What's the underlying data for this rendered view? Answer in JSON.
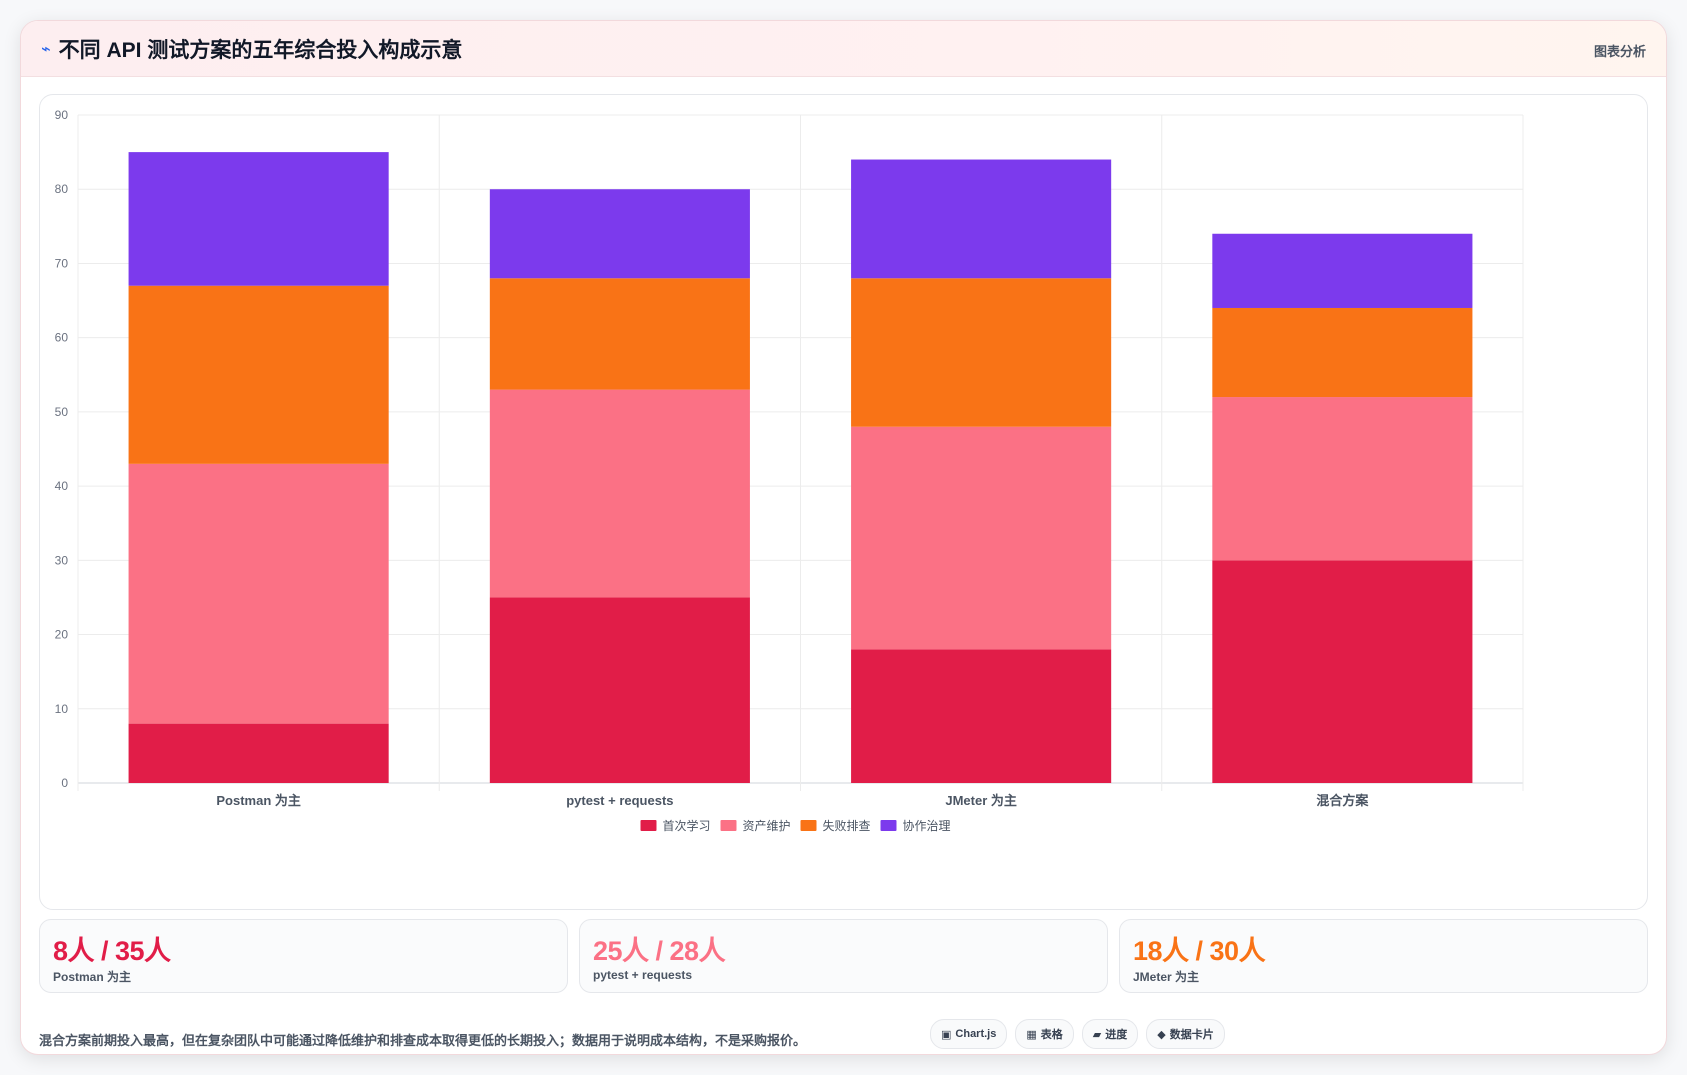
{
  "header": {
    "icon": "chart-icon",
    "title": "不同 API 测试方案的五年综合投入构成示意",
    "analysis_label": "图表分析"
  },
  "colors": {
    "first_learning": "#e11d48",
    "asset_maintenance": "#fb7185",
    "failure_debug": "#f97316",
    "collaboration": "#7c3aed"
  },
  "chart_data": {
    "type": "bar",
    "stacked": true,
    "categories": [
      "Postman 为主",
      "pytest + requests",
      "JMeter 为主",
      "混合方案"
    ],
    "series": [
      {
        "name": "首次学习",
        "color": "#e11d48",
        "values": [
          8,
          25,
          18,
          30
        ]
      },
      {
        "name": "资产维护",
        "color": "#fb7185",
        "values": [
          35,
          28,
          30,
          22
        ]
      },
      {
        "name": "失败排查",
        "color": "#f97316",
        "values": [
          24,
          15,
          20,
          12
        ]
      },
      {
        "name": "协作治理",
        "color": "#7c3aed",
        "values": [
          18,
          12,
          16,
          10
        ]
      }
    ],
    "ylim": [
      0,
      90
    ],
    "yticks": [
      0,
      10,
      20,
      30,
      40,
      50,
      60,
      70,
      80,
      90
    ],
    "grid": true,
    "legend_position": "bottom"
  },
  "stats": [
    {
      "value": "8人 / 35人",
      "label": "Postman 为主",
      "color": "#e11d48"
    },
    {
      "value": "25人 / 28人",
      "label": "pytest + requests",
      "color": "#fb7185"
    },
    {
      "value": "18人 / 30人",
      "label": "JMeter 为主",
      "color": "#f97316"
    }
  ],
  "footnote": "混合方案前期投入最高，但在复杂团队中可能通过降低维护和排查成本取得更低的长期投入；数据用于说明成本结构，不是采购报价。",
  "chips": [
    {
      "icon": "▣",
      "label": "Chart.js"
    },
    {
      "icon": "▦",
      "label": "表格"
    },
    {
      "icon": "▰",
      "label": "进度"
    },
    {
      "icon": "◆",
      "label": "数据卡片"
    }
  ]
}
